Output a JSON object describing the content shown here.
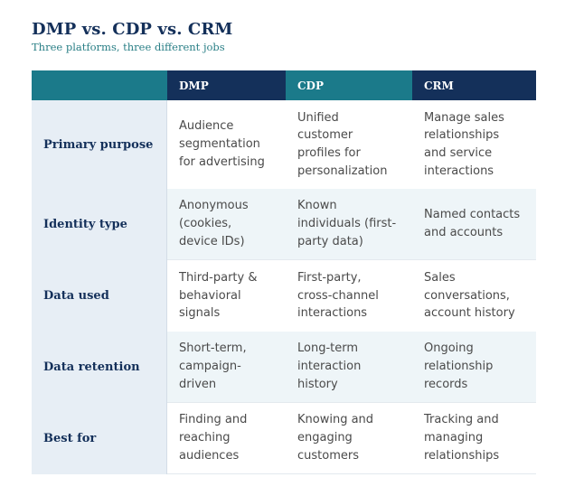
{
  "title": "DMP vs. CDP vs. CRM",
  "subtitle": "Three platforms, three different jobs",
  "table": {
    "headers": [
      "",
      "DMP",
      "CDP",
      "CRM"
    ],
    "rows": [
      {
        "label": "Primary purpose",
        "cells": [
          "Audience\nsegmentation\nfor advertising",
          "Unified\ncustomer\nprofiles for\npersonalization",
          "Manage sales\nrelationships\nand service\ninteractions"
        ]
      },
      {
        "label": "Identity type",
        "cells": [
          "Anonymous\n(cookies,\ndevice IDs)",
          "Known\nindividuals (first-\nparty data)",
          "Named contacts\nand accounts"
        ]
      },
      {
        "label": "Data used",
        "cells": [
          "Third-party &\nbehavioral\nsignals",
          "First-party,\ncross-channel\ninteractions",
          "Sales\nconversations,\naccount history"
        ]
      },
      {
        "label": "Data retention",
        "cells": [
          "Short-term,\ncampaign-\ndriven",
          "Long-term\ninteraction\nhistory",
          "Ongoing\nrelationship\nrecords"
        ]
      },
      {
        "label": "Best for",
        "cells": [
          "Finding and\nreaching\naudiences",
          "Knowing and\nengaging\ncustomers",
          "Tracking and\nmanaging\nrelationships"
        ]
      }
    ]
  },
  "colors": {
    "navy": "#14305a",
    "teal": "#1b7a8a",
    "label_bg": "#e7eef5",
    "tint_row": "#eef5f8"
  }
}
